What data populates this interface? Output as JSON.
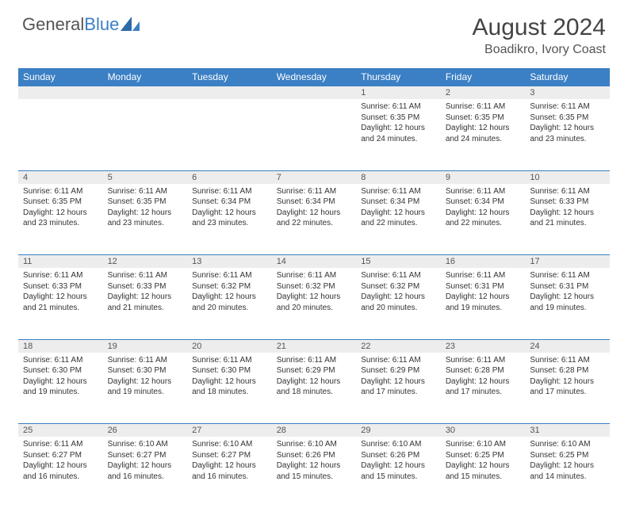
{
  "brand": {
    "part1": "General",
    "part2": "Blue"
  },
  "title": "August 2024",
  "location": "Boadikro, Ivory Coast",
  "colors": {
    "header_bg": "#3b7fc4",
    "header_text": "#ffffff",
    "daynum_bg": "#ededed",
    "border": "#3b7fc4",
    "text": "#333333"
  },
  "weekdays": [
    "Sunday",
    "Monday",
    "Tuesday",
    "Wednesday",
    "Thursday",
    "Friday",
    "Saturday"
  ],
  "weeks": [
    [
      null,
      null,
      null,
      null,
      {
        "n": "1",
        "sr": "Sunrise: 6:11 AM",
        "ss": "Sunset: 6:35 PM",
        "dl": "Daylight: 12 hours and 24 minutes."
      },
      {
        "n": "2",
        "sr": "Sunrise: 6:11 AM",
        "ss": "Sunset: 6:35 PM",
        "dl": "Daylight: 12 hours and 24 minutes."
      },
      {
        "n": "3",
        "sr": "Sunrise: 6:11 AM",
        "ss": "Sunset: 6:35 PM",
        "dl": "Daylight: 12 hours and 23 minutes."
      }
    ],
    [
      {
        "n": "4",
        "sr": "Sunrise: 6:11 AM",
        "ss": "Sunset: 6:35 PM",
        "dl": "Daylight: 12 hours and 23 minutes."
      },
      {
        "n": "5",
        "sr": "Sunrise: 6:11 AM",
        "ss": "Sunset: 6:35 PM",
        "dl": "Daylight: 12 hours and 23 minutes."
      },
      {
        "n": "6",
        "sr": "Sunrise: 6:11 AM",
        "ss": "Sunset: 6:34 PM",
        "dl": "Daylight: 12 hours and 23 minutes."
      },
      {
        "n": "7",
        "sr": "Sunrise: 6:11 AM",
        "ss": "Sunset: 6:34 PM",
        "dl": "Daylight: 12 hours and 22 minutes."
      },
      {
        "n": "8",
        "sr": "Sunrise: 6:11 AM",
        "ss": "Sunset: 6:34 PM",
        "dl": "Daylight: 12 hours and 22 minutes."
      },
      {
        "n": "9",
        "sr": "Sunrise: 6:11 AM",
        "ss": "Sunset: 6:34 PM",
        "dl": "Daylight: 12 hours and 22 minutes."
      },
      {
        "n": "10",
        "sr": "Sunrise: 6:11 AM",
        "ss": "Sunset: 6:33 PM",
        "dl": "Daylight: 12 hours and 21 minutes."
      }
    ],
    [
      {
        "n": "11",
        "sr": "Sunrise: 6:11 AM",
        "ss": "Sunset: 6:33 PM",
        "dl": "Daylight: 12 hours and 21 minutes."
      },
      {
        "n": "12",
        "sr": "Sunrise: 6:11 AM",
        "ss": "Sunset: 6:33 PM",
        "dl": "Daylight: 12 hours and 21 minutes."
      },
      {
        "n": "13",
        "sr": "Sunrise: 6:11 AM",
        "ss": "Sunset: 6:32 PM",
        "dl": "Daylight: 12 hours and 20 minutes."
      },
      {
        "n": "14",
        "sr": "Sunrise: 6:11 AM",
        "ss": "Sunset: 6:32 PM",
        "dl": "Daylight: 12 hours and 20 minutes."
      },
      {
        "n": "15",
        "sr": "Sunrise: 6:11 AM",
        "ss": "Sunset: 6:32 PM",
        "dl": "Daylight: 12 hours and 20 minutes."
      },
      {
        "n": "16",
        "sr": "Sunrise: 6:11 AM",
        "ss": "Sunset: 6:31 PM",
        "dl": "Daylight: 12 hours and 19 minutes."
      },
      {
        "n": "17",
        "sr": "Sunrise: 6:11 AM",
        "ss": "Sunset: 6:31 PM",
        "dl": "Daylight: 12 hours and 19 minutes."
      }
    ],
    [
      {
        "n": "18",
        "sr": "Sunrise: 6:11 AM",
        "ss": "Sunset: 6:30 PM",
        "dl": "Daylight: 12 hours and 19 minutes."
      },
      {
        "n": "19",
        "sr": "Sunrise: 6:11 AM",
        "ss": "Sunset: 6:30 PM",
        "dl": "Daylight: 12 hours and 19 minutes."
      },
      {
        "n": "20",
        "sr": "Sunrise: 6:11 AM",
        "ss": "Sunset: 6:30 PM",
        "dl": "Daylight: 12 hours and 18 minutes."
      },
      {
        "n": "21",
        "sr": "Sunrise: 6:11 AM",
        "ss": "Sunset: 6:29 PM",
        "dl": "Daylight: 12 hours and 18 minutes."
      },
      {
        "n": "22",
        "sr": "Sunrise: 6:11 AM",
        "ss": "Sunset: 6:29 PM",
        "dl": "Daylight: 12 hours and 17 minutes."
      },
      {
        "n": "23",
        "sr": "Sunrise: 6:11 AM",
        "ss": "Sunset: 6:28 PM",
        "dl": "Daylight: 12 hours and 17 minutes."
      },
      {
        "n": "24",
        "sr": "Sunrise: 6:11 AM",
        "ss": "Sunset: 6:28 PM",
        "dl": "Daylight: 12 hours and 17 minutes."
      }
    ],
    [
      {
        "n": "25",
        "sr": "Sunrise: 6:11 AM",
        "ss": "Sunset: 6:27 PM",
        "dl": "Daylight: 12 hours and 16 minutes."
      },
      {
        "n": "26",
        "sr": "Sunrise: 6:10 AM",
        "ss": "Sunset: 6:27 PM",
        "dl": "Daylight: 12 hours and 16 minutes."
      },
      {
        "n": "27",
        "sr": "Sunrise: 6:10 AM",
        "ss": "Sunset: 6:27 PM",
        "dl": "Daylight: 12 hours and 16 minutes."
      },
      {
        "n": "28",
        "sr": "Sunrise: 6:10 AM",
        "ss": "Sunset: 6:26 PM",
        "dl": "Daylight: 12 hours and 15 minutes."
      },
      {
        "n": "29",
        "sr": "Sunrise: 6:10 AM",
        "ss": "Sunset: 6:26 PM",
        "dl": "Daylight: 12 hours and 15 minutes."
      },
      {
        "n": "30",
        "sr": "Sunrise: 6:10 AM",
        "ss": "Sunset: 6:25 PM",
        "dl": "Daylight: 12 hours and 15 minutes."
      },
      {
        "n": "31",
        "sr": "Sunrise: 6:10 AM",
        "ss": "Sunset: 6:25 PM",
        "dl": "Daylight: 12 hours and 14 minutes."
      }
    ]
  ]
}
